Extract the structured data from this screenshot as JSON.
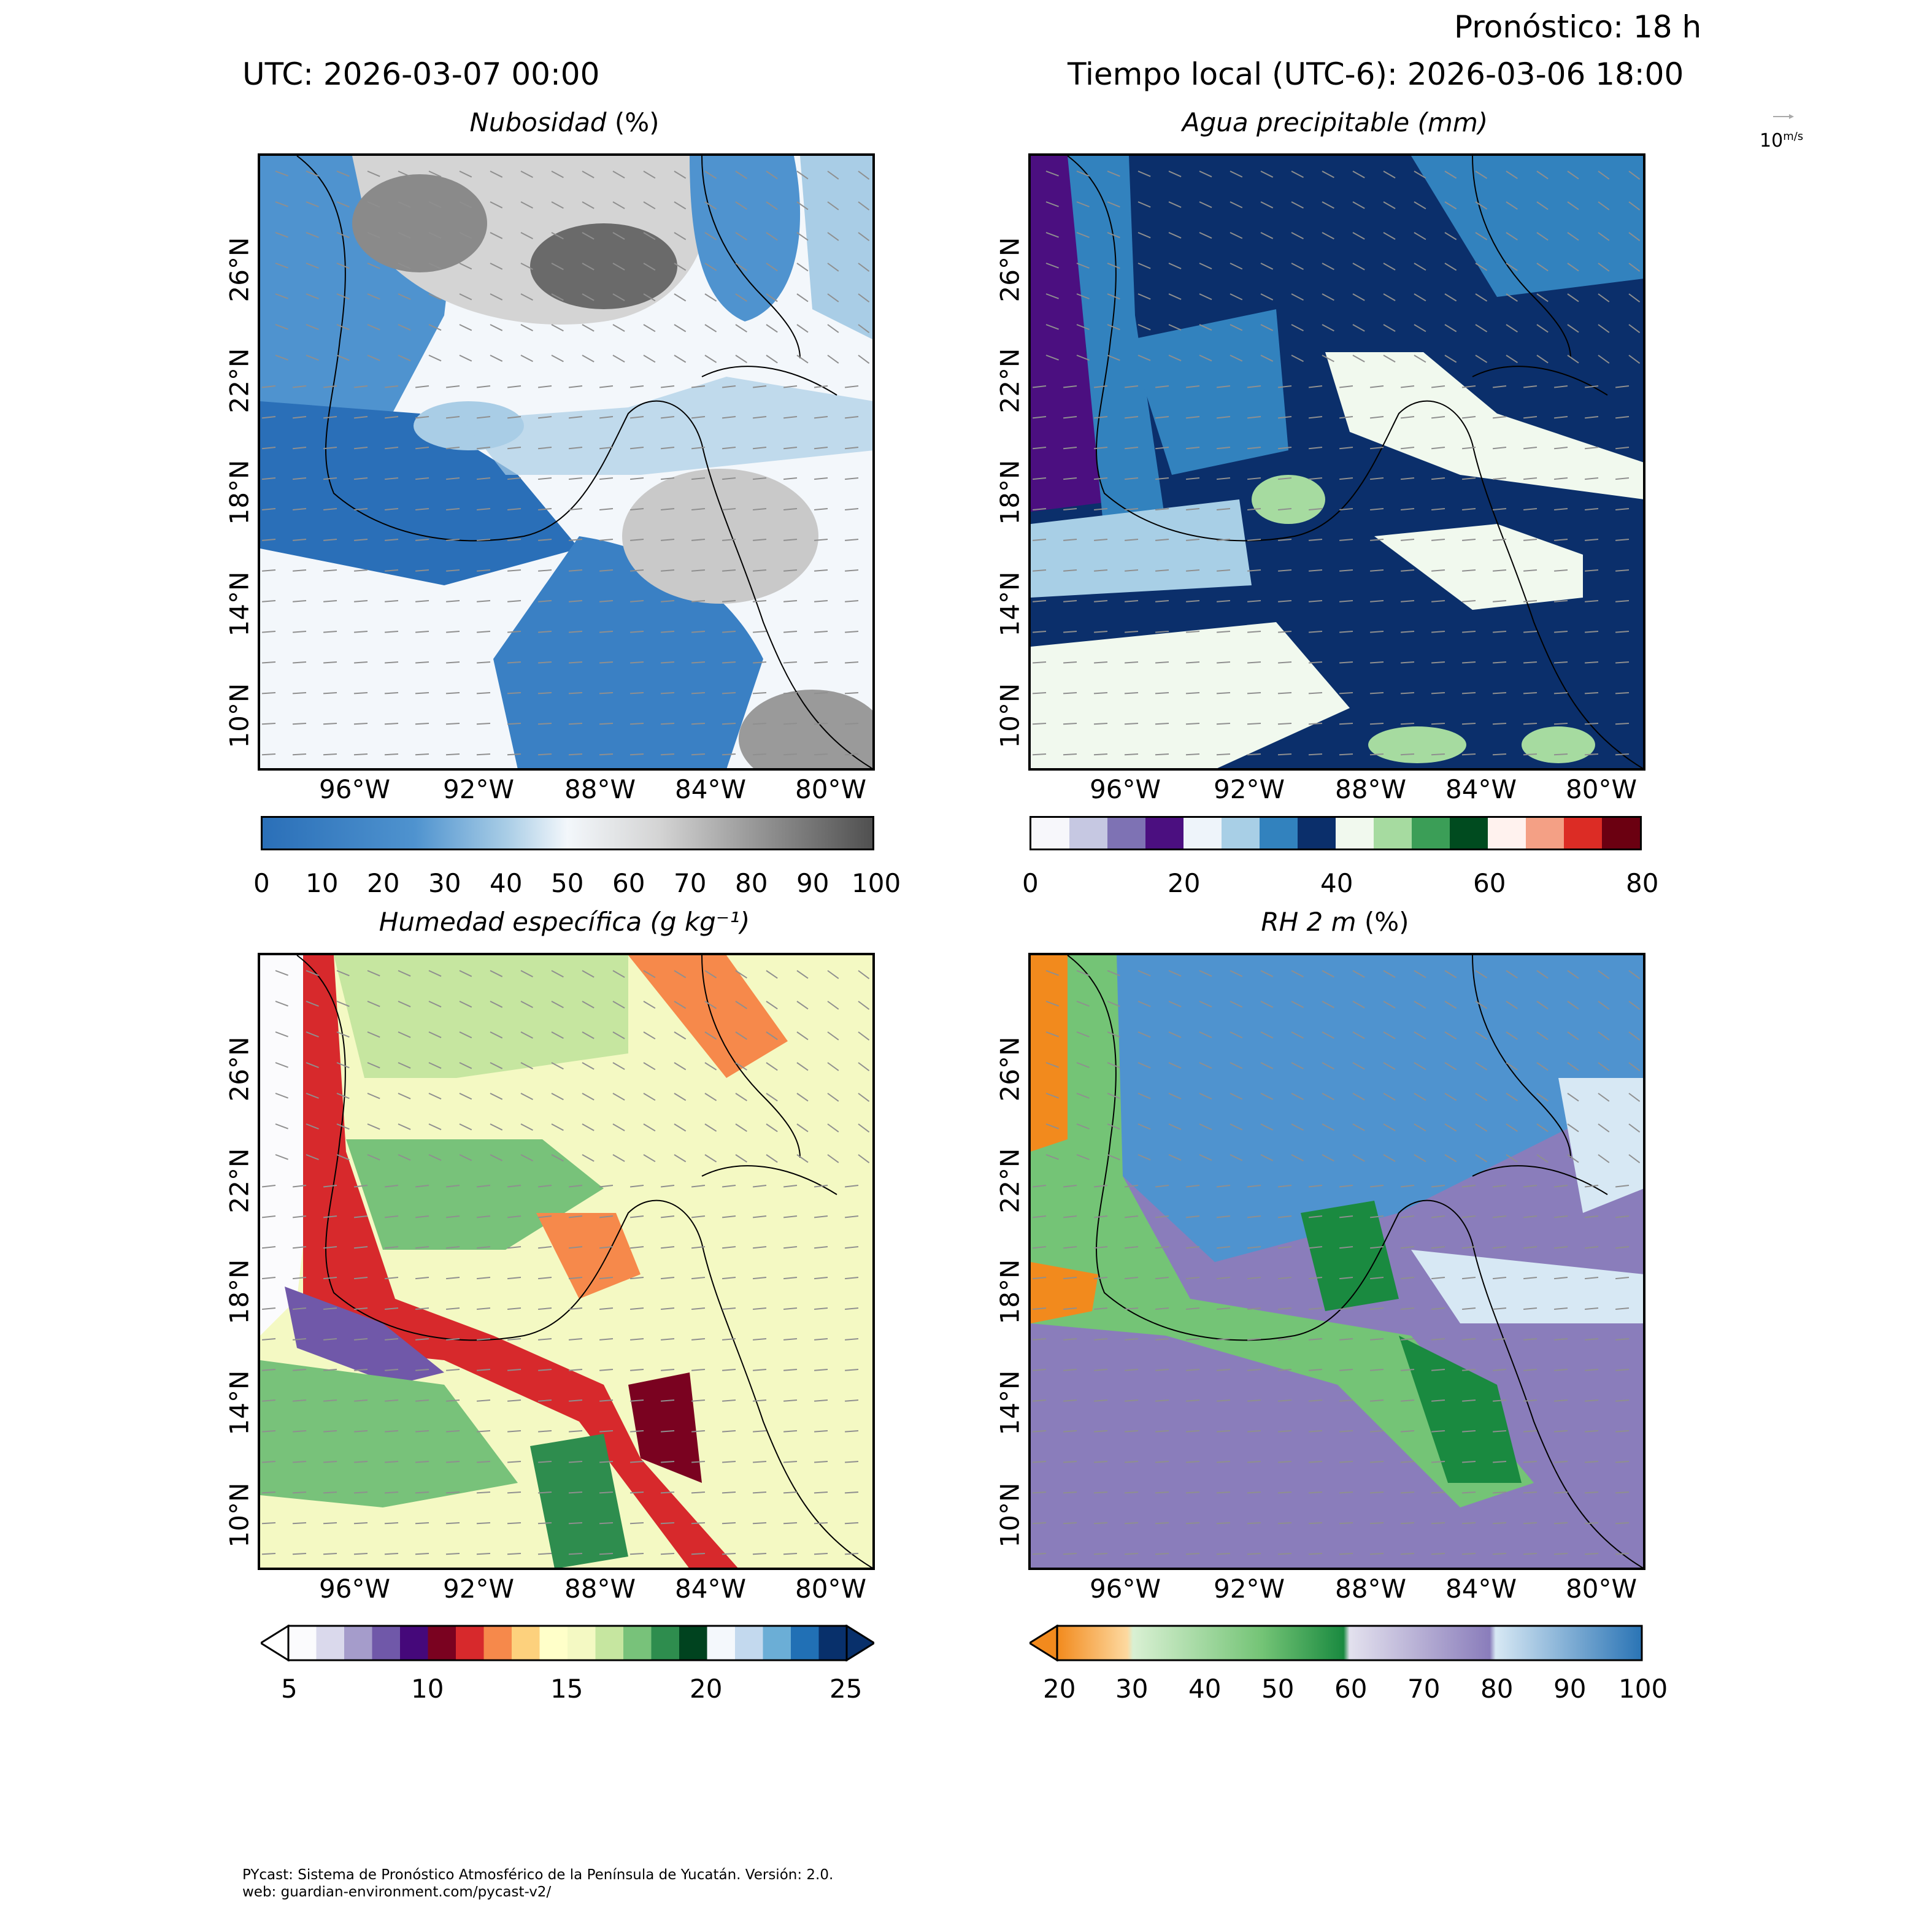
{
  "header": {
    "forecast": "Pronóstico: 18 h",
    "utc": "UTC:  2026-03-07 00:00",
    "local": "Tiempo local (UTC-6): 2026-03-06 18:00",
    "wind_key": "10",
    "wind_key_units": "m/s"
  },
  "axes": {
    "x_ticks": [
      "96°W",
      "92°W",
      "88°W",
      "84°W",
      "80°W"
    ],
    "y_ticks_top": [
      "26°N",
      "22°N",
      "18°N",
      "14°N",
      "10°N"
    ],
    "y_ticks_bottom": [
      "26°N",
      "22°N",
      "18°N",
      "14°N",
      "10°N"
    ]
  },
  "panels": [
    {
      "title_main": "Nubosidad",
      "title_unit": "(%)",
      "colorbar_ticks": [
        "0",
        "10",
        "20",
        "30",
        "40",
        "50",
        "60",
        "70",
        "80",
        "90",
        "100"
      ],
      "colors": [
        "#2a6fb8",
        "#4f93cf",
        "#a9cde6",
        "#f3f7fb",
        "#d4d4d4",
        "#9a9a9a",
        "#505050"
      ]
    },
    {
      "title_main": "Agua precipitable",
      "title_unit": "(mm)",
      "colorbar_ticks": [
        "0",
        "20",
        "40",
        "60",
        "80"
      ],
      "colors": [
        "#f7f7fb",
        "#c6c8e2",
        "#7e72b4",
        "#4b0f80",
        "#eef4fa",
        "#a8cfe6",
        "#3282be",
        "#0b2f6b",
        "#f1f9ee",
        "#a6dba0",
        "#3b9e57",
        "#004b1f",
        "#fff2ee",
        "#f4a085",
        "#dc2c25",
        "#6b0011"
      ]
    },
    {
      "title_main": "Humedad específica",
      "title_unit": "(g kg⁻¹)",
      "colorbar_ticks": [
        "5",
        "10",
        "15",
        "20",
        "25"
      ],
      "colors": [
        "#fbfbfd",
        "#dad9ec",
        "#a59ccb",
        "#7058a9",
        "#45087a",
        "#7a0220",
        "#d7292c",
        "#f6894b",
        "#fdd17d",
        "#ffffc9",
        "#f4f9c3",
        "#c6e6a0",
        "#78c27a",
        "#2e8d4e",
        "#00431f",
        "#f4f8fc",
        "#c3d9ee",
        "#6baed6",
        "#2170b5",
        "#08306b"
      ]
    },
    {
      "title_main": "RH 2 m",
      "title_unit": "(%)",
      "colorbar_ticks": [
        "20",
        "30",
        "40",
        "50",
        "60",
        "70",
        "80",
        "90",
        "100"
      ],
      "colors": [
        "#f28a1d",
        "#fdd9a0",
        "#d9f0d3",
        "#74c476",
        "#1a8a40",
        "#e3e1ee",
        "#8a7dbb",
        "#d7e8f4",
        "#2a74b5"
      ]
    }
  ],
  "footer": {
    "line1": "PYcast: Sistema de Pronóstico Atmosférico de la Península de Yucatán. Versión: 2.0.",
    "line2": "web: guardian-environment.com/pycast-v2/"
  }
}
